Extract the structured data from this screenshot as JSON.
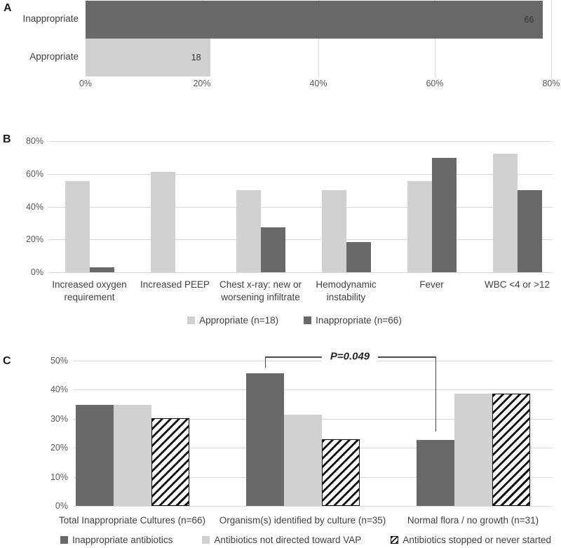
{
  "colors": {
    "dark_series": "#696969",
    "light_series": "#d1d1d1",
    "gridline": "#d9d9d9",
    "hatch": "#111111",
    "axis_text": "#595959",
    "label_text": "#404040"
  },
  "chart_data": [
    {
      "panel_label": "A",
      "type": "bar",
      "orientation": "horizontal",
      "categories": [
        "Inappropriate",
        "Appropriate"
      ],
      "values_pct": [
        78.6,
        21.4
      ],
      "data_labels": [
        "66",
        "18"
      ],
      "bar_styles": [
        "dark",
        "light"
      ],
      "x_tick_labels": [
        "0%",
        "20%",
        "40%",
        "60%",
        "80%"
      ],
      "x_tick_values": [
        0,
        20,
        40,
        60,
        80
      ],
      "xlim": [
        0,
        80
      ],
      "grid": true
    },
    {
      "panel_label": "B",
      "type": "bar",
      "orientation": "vertical",
      "categories": [
        "Increased oxygen requirement",
        "Increased PEEP",
        "Chest x-ray: new or worsening infiltrate",
        "Hemodynamic instability",
        "Fever",
        "WBC <4 or >12"
      ],
      "series": [
        {
          "name": "Appropriate (n=18)",
          "style": "light",
          "values": [
            55.6,
            61.1,
            50.0,
            50.0,
            55.6,
            72.2
          ]
        },
        {
          "name": "Inappropriate (n=66)",
          "style": "dark",
          "values": [
            3.0,
            0.0,
            27.3,
            18.2,
            69.7,
            50.0
          ]
        }
      ],
      "y_tick_labels": [
        "0%",
        "20%",
        "40%",
        "60%",
        "80%"
      ],
      "y_tick_values": [
        0,
        20,
        40,
        60,
        80
      ],
      "ylim": [
        0,
        80
      ],
      "grid": true,
      "legend_position": "bottom"
    },
    {
      "panel_label": "C",
      "type": "bar",
      "orientation": "vertical",
      "categories": [
        "Total Inappropriate Cultures (n=66)",
        "Organism(s) identified by culture (n=35)",
        "Normal flora / no growth (n=31)"
      ],
      "series": [
        {
          "name": "Inappropriate antibiotics",
          "style": "dark",
          "values": [
            34.8,
            45.7,
            22.6
          ]
        },
        {
          "name": "Antibiotics not directed toward VAP",
          "style": "light",
          "values": [
            34.8,
            31.4,
            38.7
          ]
        },
        {
          "name": "Antibiotics stopped or never started",
          "style": "hatch",
          "values": [
            30.3,
            22.9,
            38.7
          ]
        }
      ],
      "y_tick_labels": [
        "0%",
        "10%",
        "20%",
        "30%",
        "40%",
        "50%"
      ],
      "y_tick_values": [
        0,
        10,
        20,
        30,
        40,
        50
      ],
      "ylim": [
        0,
        50
      ],
      "grid": true,
      "legend_position": "bottom",
      "annotation": {
        "text": "P=0.049",
        "series_index": 0,
        "from_category_index": 1,
        "to_category_index": 2
      }
    }
  ]
}
